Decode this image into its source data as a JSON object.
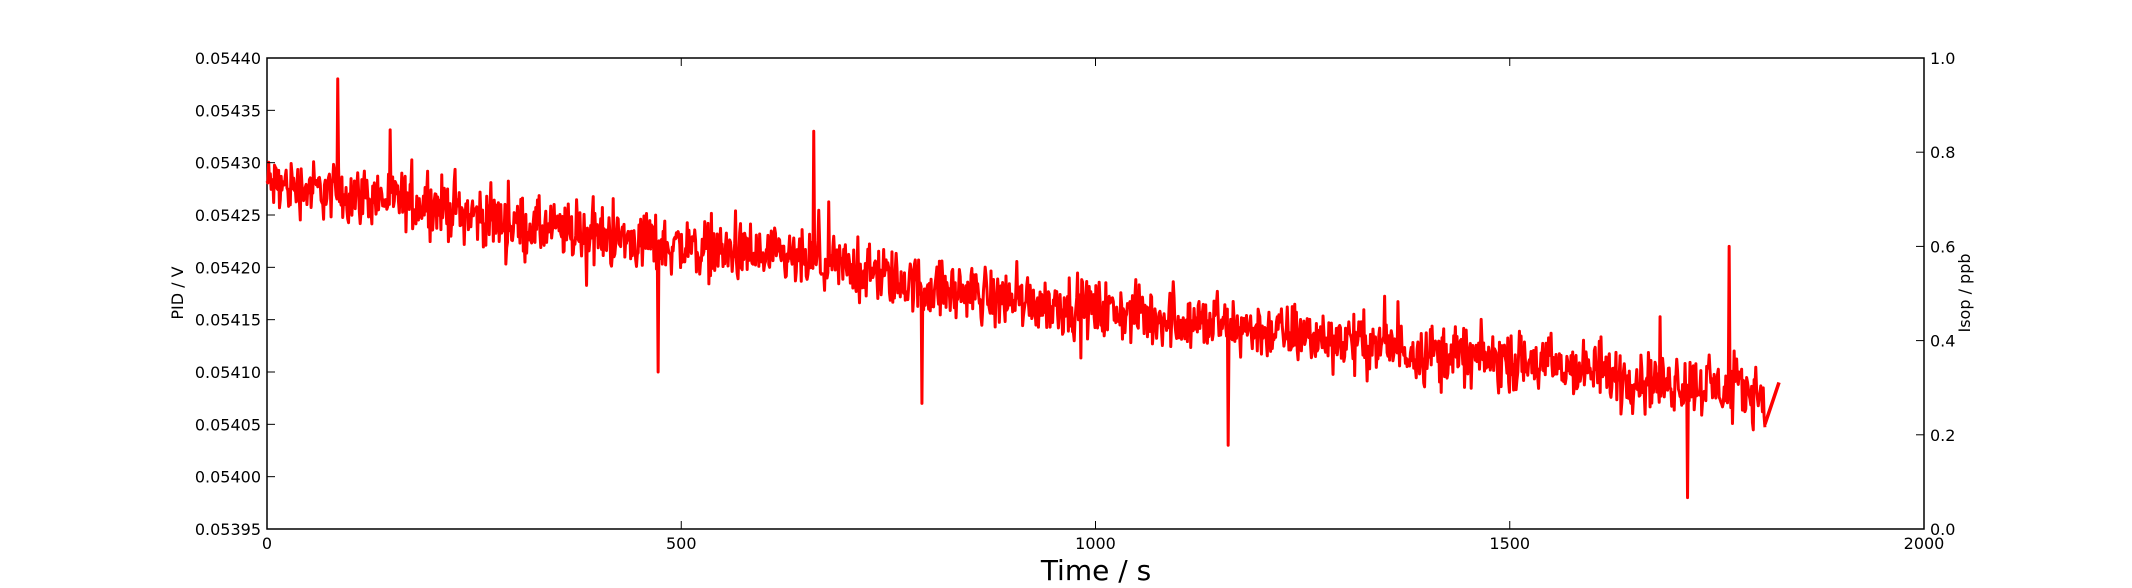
{
  "chart_data": {
    "type": "line",
    "xlabel": "Time / s",
    "ylabel": "PID / V",
    "y2label": "Isop / ppb",
    "xlim": [
      0,
      2000
    ],
    "ylim": [
      0.05395,
      0.0544
    ],
    "y2lim": [
      0.0,
      1.0
    ],
    "x_ticks": [
      0,
      500,
      1000,
      1500,
      2000
    ],
    "x_tick_labels": [
      "0",
      "500",
      "1000",
      "1500",
      "2000"
    ],
    "y_ticks": [
      0.05395,
      0.054,
      0.05405,
      0.0541,
      0.05415,
      0.0542,
      0.05425,
      0.0543,
      0.05435,
      0.0544
    ],
    "y_tick_labels": [
      "0.05395",
      "0.05400",
      "0.05405",
      "0.05410",
      "0.05415",
      "0.05420",
      "0.05425",
      "0.05430",
      "0.05435",
      "0.05440"
    ],
    "y2_ticks": [
      0.0,
      0.2,
      0.4,
      0.6,
      0.8,
      1.0
    ],
    "y2_tick_labels": [
      "0.0",
      "0.2",
      "0.4",
      "0.6",
      "0.8",
      "1.0"
    ],
    "grid": false,
    "series": [
      {
        "color": "#ff0000",
        "axis": "left",
        "x_range": [
          0,
          1808
        ],
        "trend_start": 0.05428,
        "trend_end": 0.05408,
        "noise_amplitude": 4e-05,
        "x": [
          0,
          100,
          200,
          300,
          400,
          500,
          600,
          700,
          800,
          900,
          1000,
          1100,
          1200,
          1300,
          1400,
          1500,
          1600,
          1700,
          1808
        ],
        "y": [
          0.05428,
          0.05427,
          0.05426,
          0.05424,
          0.05423,
          0.05422,
          0.05421,
          0.0542,
          0.05418,
          0.05417,
          0.05416,
          0.05415,
          0.05414,
          0.05413,
          0.05412,
          0.05411,
          0.0541,
          0.05409,
          0.05408
        ],
        "tail": {
          "x": [
            1808,
            1825
          ],
          "y": [
            0.05405,
            0.05409
          ]
        },
        "highlight_peaks": [
          {
            "x": 85,
            "y": 0.05438
          },
          {
            "x": 660,
            "y": 0.05433
          },
          {
            "x": 1765,
            "y": 0.05422
          }
        ],
        "highlight_troughs": [
          {
            "x": 472,
            "y": 0.0541
          },
          {
            "x": 790,
            "y": 0.05407
          },
          {
            "x": 1160,
            "y": 0.05403
          },
          {
            "x": 1715,
            "y": 0.05398
          }
        ]
      }
    ]
  }
}
